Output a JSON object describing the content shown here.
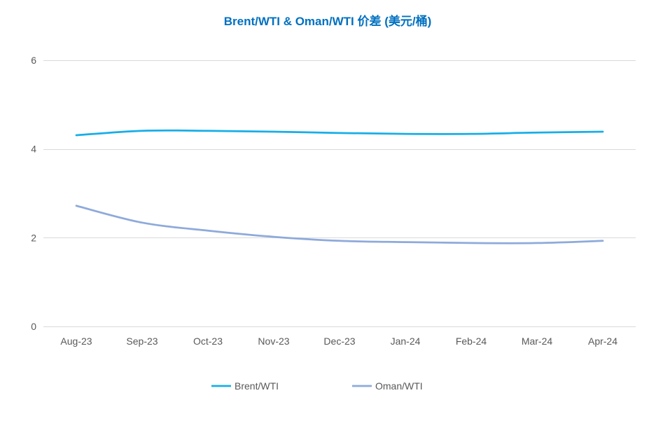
{
  "chart_data": {
    "type": "line",
    "title": "Brent/WTI & Oman/WTI 价差 (美元/桶)",
    "title_color": "#0070C0",
    "xlabel": "",
    "ylabel": "",
    "categories": [
      "Aug-23",
      "Sep-23",
      "Oct-23",
      "Nov-23",
      "Dec-23",
      "Jan-24",
      "Feb-24",
      "Mar-24",
      "Apr-24"
    ],
    "series": [
      {
        "name": "Brent/WTI",
        "color": "#17AEE8",
        "values": [
          4.31,
          4.41,
          4.41,
          4.39,
          4.36,
          4.34,
          4.34,
          4.37,
          4.39
        ]
      },
      {
        "name": "Oman/WTI",
        "color": "#8EAADB",
        "values": [
          2.72,
          2.34,
          2.16,
          2.02,
          1.93,
          1.9,
          1.88,
          1.88,
          1.93
        ]
      }
    ],
    "ylim": [
      0,
      6
    ],
    "yticks": [
      0,
      2,
      4,
      6
    ],
    "grid": true,
    "legend": "bottom"
  }
}
